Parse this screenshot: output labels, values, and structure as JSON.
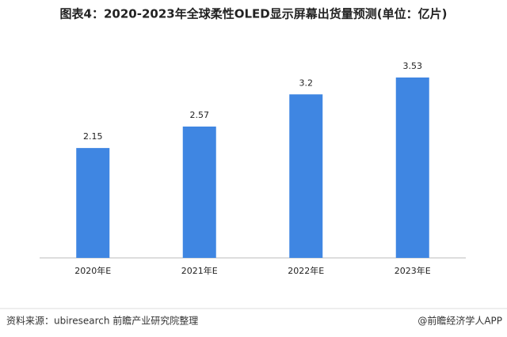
{
  "chart_data": {
    "type": "bar",
    "title": "图表4：2020-2023年全球柔性OLED显示屏幕出货量预测(单位：亿片)",
    "categories": [
      "2020年E",
      "2021年E",
      "2022年E",
      "2023年E"
    ],
    "values": [
      2.15,
      2.57,
      3.2,
      3.53
    ],
    "color": "#3f86e2"
  },
  "footer": {
    "source": "资料来源：ubiresearch 前瞻产业研究院整理",
    "credit": "@前瞻经济学人APP"
  }
}
